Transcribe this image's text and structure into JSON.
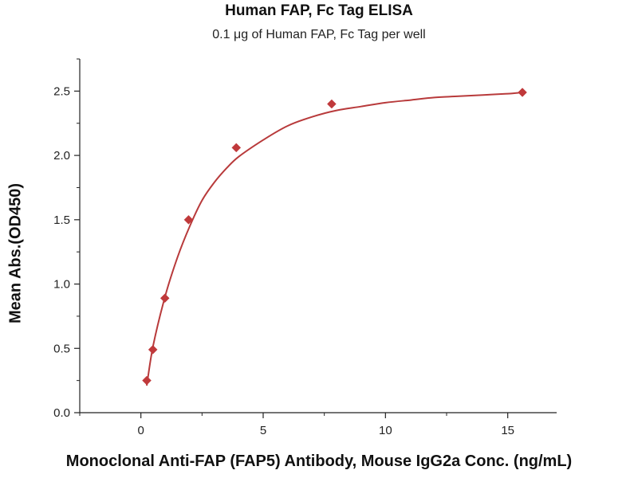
{
  "chart_data": {
    "type": "scatter",
    "title": "Human FAP, Fc Tag ELISA",
    "subtitle": "0.1 μg of Human FAP, Fc Tag per well",
    "xlabel": "Monoclonal Anti-FAP (FAP5) Antibody, Mouse IgG2a Conc. (ng/mL)",
    "ylabel": "Mean Abs.(OD450)",
    "xlim": [
      -2.5,
      17
    ],
    "ylim": [
      0,
      2.75
    ],
    "xticks": [
      0,
      5,
      10,
      15
    ],
    "yticks": [
      0.0,
      0.5,
      1.0,
      1.5,
      2.0,
      2.5
    ],
    "xtick_labels": [
      "0",
      "5",
      "10",
      "15"
    ],
    "ytick_labels": [
      "0.0",
      "0.5",
      "1.0",
      "1.5",
      "2.0",
      "2.5"
    ],
    "grid": false,
    "series": [
      {
        "marker": "diamond",
        "color": "#c0393b",
        "x": [
          0.24,
          0.49,
          0.98,
          1.95,
          3.9,
          7.8,
          15.6
        ],
        "y": [
          0.25,
          0.49,
          0.89,
          1.5,
          2.06,
          2.4,
          2.49
        ]
      }
    ],
    "fit_curve": {
      "color": "#b83a3b",
      "x": [
        0.24,
        0.5,
        1.0,
        1.5,
        2.0,
        2.5,
        3.0,
        3.5,
        4.0,
        5.0,
        6.0,
        7.0,
        8.0,
        9.0,
        10.0,
        11.0,
        12.0,
        13.0,
        14.0,
        15.0,
        15.6
      ],
      "y": [
        0.21,
        0.52,
        0.91,
        1.21,
        1.45,
        1.65,
        1.79,
        1.9,
        1.99,
        2.12,
        2.23,
        2.3,
        2.35,
        2.38,
        2.41,
        2.43,
        2.45,
        2.46,
        2.47,
        2.48,
        2.49
      ]
    }
  }
}
